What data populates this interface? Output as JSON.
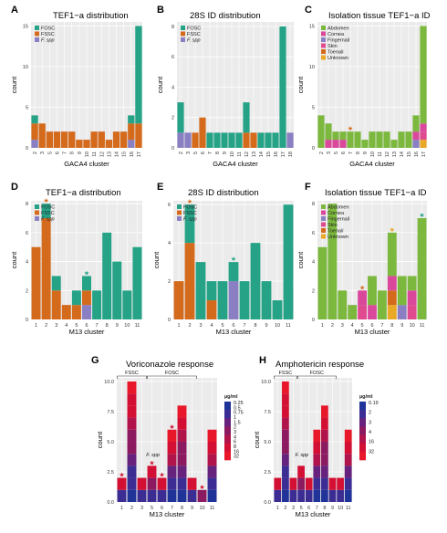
{
  "colors": {
    "FOSC": "#26A387",
    "FSSC": "#D46A1C",
    "Fspp": "#8A7FC2",
    "Abdomen": "#7CB83E",
    "Cornea": "#D9489B",
    "Fingernail": "#8A7FC2",
    "Skin": "#E04A8F",
    "Toenail": "#D46A1C",
    "Unknown": "#E9A825",
    "panel_bg": "#EBEBEB",
    "grid": "#FFFFFF",
    "drug": [
      "#1F3399",
      "#3B2D93",
      "#66227C",
      "#8C1A61",
      "#B1144A",
      "#D30F33",
      "#E8172A"
    ]
  },
  "chart_data": [
    {
      "id": "A",
      "type": "bar",
      "stacked": true,
      "title": "TEF1−a distribution",
      "xlabel": "GACA4 cluster",
      "ylabel": "count",
      "categories": [
        "2",
        "3",
        "5",
        "6",
        "7",
        "8",
        "9",
        "10",
        "11",
        "12",
        "13",
        "14",
        "15",
        "16",
        "17"
      ],
      "yticks": [
        0,
        5,
        10,
        15
      ],
      "ylim": [
        0,
        15.5
      ],
      "tick_rotate": true,
      "legend": [
        "FOSC",
        "FSSC",
        "F. spp"
      ],
      "legend_keys": [
        "FOSC",
        "FSSC",
        "Fspp"
      ],
      "series": [
        {
          "key": "Fspp",
          "values": [
            1,
            0,
            0,
            0,
            0,
            0,
            0,
            0,
            0,
            0,
            0,
            0,
            0,
            1,
            0
          ]
        },
        {
          "key": "FSSC",
          "values": [
            2,
            3,
            2,
            2,
            2,
            2,
            1,
            1,
            2,
            2,
            1,
            2,
            2,
            2,
            3
          ]
        },
        {
          "key": "FOSC",
          "values": [
            1,
            0,
            0,
            0,
            0,
            0,
            0,
            0,
            0,
            0,
            0,
            0,
            0,
            1,
            12
          ]
        }
      ]
    },
    {
      "id": "B",
      "type": "bar",
      "stacked": true,
      "title": "28S ID distribution",
      "xlabel": "GACA4 cluster",
      "ylabel": "count",
      "categories": [
        "2",
        "3",
        "5",
        "6",
        "7",
        "8",
        "9",
        "10",
        "11",
        "12",
        "13",
        "14",
        "15",
        "16",
        "17",
        "18"
      ],
      "yticks": [
        0,
        2,
        4,
        6,
        8
      ],
      "ylim": [
        0,
        8.3
      ],
      "tick_rotate": true,
      "legend": [
        "FOSC",
        "FSSC",
        "F. spp"
      ],
      "legend_keys": [
        "FOSC",
        "FSSC",
        "Fspp"
      ],
      "series": [
        {
          "key": "Fspp",
          "values": [
            1,
            1,
            0,
            0,
            0,
            0,
            0,
            0,
            0,
            0,
            0,
            0,
            0,
            0,
            0,
            1
          ]
        },
        {
          "key": "FSSC",
          "values": [
            0,
            0,
            1,
            2,
            0,
            0,
            0,
            0,
            0,
            1,
            1,
            0,
            0,
            0,
            0,
            0
          ]
        },
        {
          "key": "FOSC",
          "values": [
            2,
            0,
            0,
            0,
            1,
            1,
            1,
            1,
            1,
            2,
            0,
            1,
            1,
            1,
            8,
            0
          ]
        }
      ]
    },
    {
      "id": "C",
      "type": "bar",
      "stacked": true,
      "title": "Isolation tissue TEF1−a ID",
      "xlabel": "GACA4 cluster",
      "ylabel": "count",
      "categories": [
        "2",
        "3",
        "5",
        "6",
        "7",
        "8",
        "9",
        "10",
        "11",
        "12",
        "13",
        "14",
        "15",
        "16",
        "17"
      ],
      "yticks": [
        0,
        5,
        10,
        15
      ],
      "ylim": [
        0,
        15.5
      ],
      "tick_rotate": true,
      "legend": [
        "Abdomen",
        "Cornea",
        "Fingernail",
        "Skin",
        "Toenail",
        "Unknown"
      ],
      "legend_keys": [
        "Abdomen",
        "Cornea",
        "Fingernail",
        "Skin",
        "Toenail",
        "Unknown"
      ],
      "stars": [
        {
          "index": 4,
          "color": "#D46A1C"
        }
      ],
      "series": [
        {
          "key": "Unknown",
          "values": [
            0,
            0,
            0,
            0,
            0,
            0,
            0,
            0,
            0,
            0,
            0,
            0,
            0,
            0,
            1
          ]
        },
        {
          "key": "Toenail",
          "values": [
            0,
            0,
            0,
            0,
            0,
            0,
            0,
            0,
            0,
            0,
            0,
            0,
            0,
            0,
            0
          ]
        },
        {
          "key": "Skin",
          "values": [
            0,
            0,
            0,
            0,
            0,
            0,
            0,
            0,
            0,
            0,
            0,
            0,
            0,
            0,
            1
          ]
        },
        {
          "key": "Fingernail",
          "values": [
            0,
            0,
            0,
            0,
            0,
            0,
            0,
            0,
            0,
            0,
            0,
            0,
            0,
            1,
            0
          ]
        },
        {
          "key": "Cornea",
          "values": [
            0,
            1,
            1,
            1,
            0,
            0,
            0,
            0,
            0,
            0,
            0,
            0,
            0,
            1,
            1
          ]
        },
        {
          "key": "Abdomen",
          "values": [
            4,
            2,
            1,
            1,
            2,
            2,
            1,
            2,
            2,
            2,
            1,
            2,
            2,
            2,
            12
          ]
        }
      ]
    },
    {
      "id": "D",
      "type": "bar",
      "stacked": true,
      "title": "TEF1−a distribution",
      "xlabel": "M13 cluster",
      "ylabel": "count",
      "categories": [
        "1",
        "2",
        "3",
        "4",
        "5",
        "6",
        "7",
        "8",
        "9",
        "10",
        "11"
      ],
      "yticks": [
        0,
        2,
        4,
        6,
        8
      ],
      "ylim": [
        0,
        8.2
      ],
      "tick_rotate": false,
      "legend": [
        "FOSC",
        "FSSC",
        "F. spp"
      ],
      "legend_keys": [
        "FOSC",
        "FSSC",
        "Fspp"
      ],
      "stars": [
        {
          "index": 1,
          "color": "#D46A1C"
        },
        {
          "index": 5,
          "color": "#26A387"
        }
      ],
      "series": [
        {
          "key": "Fspp",
          "values": [
            0,
            0,
            0,
            0,
            0,
            1,
            0,
            0,
            0,
            0,
            0
          ]
        },
        {
          "key": "FSSC",
          "values": [
            5,
            7,
            2,
            1,
            1,
            1,
            0,
            0,
            0,
            0,
            0
          ]
        },
        {
          "key": "FOSC",
          "values": [
            0,
            1,
            1,
            0,
            1,
            1,
            2,
            6,
            4,
            2,
            5
          ]
        }
      ]
    },
    {
      "id": "E",
      "type": "bar",
      "stacked": true,
      "title": "28S ID distribution",
      "xlabel": "M13 cluster",
      "ylabel": "count",
      "categories": [
        "1",
        "2",
        "3",
        "4",
        "5",
        "6",
        "7",
        "8",
        "9",
        "10",
        "11"
      ],
      "yticks": [
        0,
        2,
        4,
        6
      ],
      "ylim": [
        0,
        6.2
      ],
      "tick_rotate": false,
      "legend": [
        "FOSC",
        "FSSC",
        "F. spp"
      ],
      "legend_keys": [
        "FOSC",
        "FSSC",
        "Fspp"
      ],
      "stars": [
        {
          "index": 1,
          "color": "#D46A1C"
        },
        {
          "index": 5,
          "color": "#26A387"
        }
      ],
      "series": [
        {
          "key": "Fspp",
          "values": [
            0,
            0,
            0,
            0,
            0,
            2,
            0,
            0,
            0,
            0,
            0
          ]
        },
        {
          "key": "FSSC",
          "values": [
            2,
            4,
            0,
            1,
            0,
            0,
            0,
            0,
            0,
            0,
            0
          ]
        },
        {
          "key": "FOSC",
          "values": [
            0,
            2,
            3,
            1,
            2,
            1,
            2,
            4,
            2,
            1,
            6
          ]
        }
      ]
    },
    {
      "id": "F",
      "type": "bar",
      "stacked": true,
      "title": "Isolation tissue TEF1−a ID",
      "xlabel": "M13 cluster",
      "ylabel": "count",
      "categories": [
        "1",
        "2",
        "3",
        "4",
        "5",
        "6",
        "7",
        "8",
        "9",
        "10",
        "11"
      ],
      "yticks": [
        0,
        2,
        4,
        6,
        8
      ],
      "ylim": [
        0,
        8.2
      ],
      "tick_rotate": false,
      "legend": [
        "Abdomen",
        "Cornea",
        "Fingernail",
        "Skin",
        "Toenail",
        "Unknown"
      ],
      "legend_keys": [
        "Abdomen",
        "Cornea",
        "Fingernail",
        "Skin",
        "Toenail",
        "Unknown"
      ],
      "stars": [
        {
          "index": 4,
          "color": "#D46A1C"
        },
        {
          "index": 7,
          "color": "#E9A825"
        },
        {
          "index": 10,
          "color": "#26A387"
        }
      ],
      "series": [
        {
          "key": "Unknown",
          "values": [
            0,
            0,
            0,
            0,
            0,
            0,
            0,
            1,
            0,
            0,
            0
          ]
        },
        {
          "key": "Toenail",
          "values": [
            0,
            0,
            0,
            0,
            0,
            0,
            0,
            1,
            0,
            0,
            0
          ]
        },
        {
          "key": "Skin",
          "values": [
            0,
            0,
            0,
            0,
            1,
            0,
            0,
            0,
            0,
            1,
            0
          ]
        },
        {
          "key": "Fingernail",
          "values": [
            0,
            0,
            0,
            0,
            0,
            0,
            0,
            0,
            1,
            0,
            0
          ]
        },
        {
          "key": "Cornea",
          "values": [
            0,
            0,
            0,
            0,
            1,
            1,
            0,
            1,
            0,
            1,
            0
          ]
        },
        {
          "key": "Abdomen",
          "values": [
            5,
            8,
            2,
            1,
            0,
            2,
            2,
            3,
            2,
            1,
            7
          ]
        }
      ]
    },
    {
      "id": "G",
      "type": "bar",
      "stacked": true,
      "title": "Voriconazole response",
      "xlabel": "M13 cluster",
      "ylabel": "count",
      "categories": [
        "1",
        "2",
        "3",
        "5",
        "6",
        "7",
        "8",
        "9",
        "10",
        "11"
      ],
      "yticks": [
        0,
        2.5,
        5.0,
        7.5,
        10.0
      ],
      "ytick_labels": [
        "0.0",
        "2.5",
        "5.0",
        "7.5",
        "10.0"
      ],
      "ylim": [
        0,
        10.3
      ],
      "tick_rotate": false,
      "legend_title": "µg/ml",
      "legend": [
        "0.25",
        "0.5",
        "0.75",
        "1",
        "1.5",
        "2",
        "3",
        "4",
        "6",
        "8",
        "16",
        "32"
      ],
      "gradient": true,
      "group_labels": [
        {
          "text": "FSSC",
          "from": 0,
          "to": 2
        },
        {
          "text": "FOSC",
          "from": 3,
          "to": 7
        }
      ],
      "annotation": {
        "text": "F. spp",
        "at": 3.6,
        "value": 3.8
      },
      "stars": [
        {
          "index": 0,
          "color": "#D30F33"
        },
        {
          "index": 3,
          "color": "#D30F33"
        },
        {
          "index": 4,
          "color": "#D30F33"
        },
        {
          "index": 5,
          "color": "#D30F33"
        },
        {
          "index": 8,
          "color": "#D30F33"
        }
      ],
      "totals": [
        2,
        10,
        2,
        3,
        2,
        6,
        8,
        2,
        1,
        6
      ],
      "series_note": "bar heights are totals; colored bands show MIC gradient from low (blue) to high (red)"
    },
    {
      "id": "H",
      "type": "bar",
      "stacked": true,
      "title": "Amphotericin response",
      "xlabel": "M13 cluster",
      "ylabel": "count",
      "categories": [
        "1",
        "2",
        "3",
        "5",
        "6",
        "7",
        "8",
        "9",
        "10",
        "11"
      ],
      "yticks": [
        0,
        2.5,
        5.0,
        7.5,
        10.0
      ],
      "ytick_labels": [
        "0.0",
        "2.5",
        "5.0",
        "7.5",
        "10.0"
      ],
      "ylim": [
        0,
        10.3
      ],
      "tick_rotate": false,
      "legend_title": "µg/ml",
      "legend": [
        "0.19",
        "2",
        "3",
        "4",
        "16",
        "32"
      ],
      "gradient": true,
      "group_labels": [
        {
          "text": "FSSC",
          "from": 0,
          "to": 2
        },
        {
          "text": "FOSC",
          "from": 3,
          "to": 7
        }
      ],
      "annotation": {
        "text": "F. spp",
        "at": 3.6,
        "value": 3.8
      },
      "stars": [],
      "totals": [
        2,
        10,
        2,
        3,
        2,
        6,
        8,
        2,
        2,
        6
      ]
    }
  ]
}
